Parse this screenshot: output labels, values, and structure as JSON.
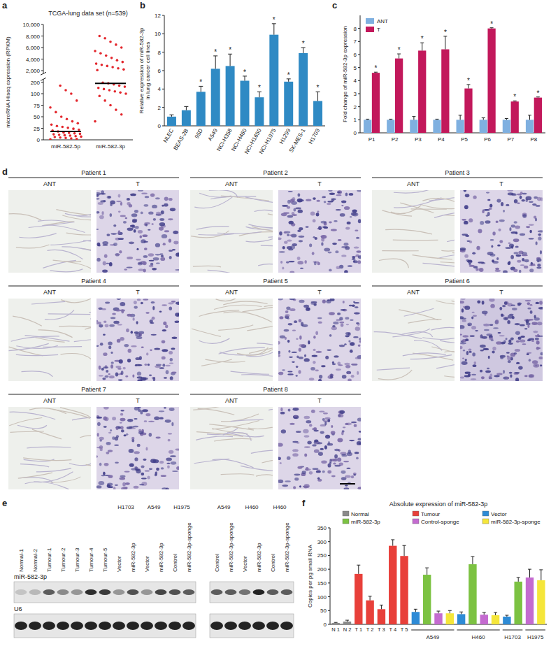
{
  "chart_data": [
    {
      "label": "a",
      "type": "strip",
      "title": "TCGA-lung data set (n=539)",
      "y_label": "microRNA Hiseq expression (RPKM)",
      "categories": [
        "miR-582-5p",
        "miR-582-3p"
      ],
      "values": [
        [
          1,
          2,
          3,
          4,
          5,
          6,
          7,
          8,
          9,
          10,
          11,
          12,
          13,
          14,
          15,
          16,
          18,
          20,
          22,
          24,
          26,
          28,
          30,
          33,
          36,
          40,
          45,
          50,
          60,
          70,
          85,
          100,
          130,
          170
        ],
        [
          40,
          55,
          65,
          75,
          85,
          95,
          100,
          110,
          120,
          130,
          140,
          150,
          160,
          170,
          180,
          190,
          195,
          2100,
          2200,
          2400,
          2600,
          2800,
          3000,
          3200,
          3500,
          3800,
          4200,
          4600,
          5000,
          5400,
          6000,
          6500,
          7000,
          7600,
          8000
        ]
      ],
      "means": [
        18,
        190
      ],
      "color": "#e3262c",
      "ylim": [
        0,
        10000
      ],
      "axis_break": [
        200,
        2000
      ],
      "yticks": [
        0,
        25,
        50,
        75,
        100,
        200,
        {
          "value": 2000,
          "label": "2,000"
        },
        {
          "value": 4000,
          "label": "4,000"
        },
        {
          "value": 6000,
          "label": "6,000"
        },
        {
          "value": 8000,
          "label": "8,000"
        },
        {
          "value": 10000,
          "label": "10,000"
        }
      ]
    },
    {
      "label": "b",
      "type": "bar",
      "y_label": [
        "Relative expression of miR-582-3p",
        "in lung cancer cell lines"
      ],
      "categories": [
        "NLEC",
        "BEAS-2B",
        "95D",
        "A549",
        "NCI-H358",
        "NCI-H460",
        "NCI-H1650",
        "NCI-H1975",
        "H1299",
        "SK-MES-1",
        "H1703"
      ],
      "values": [
        1,
        1.7,
        3.7,
        6.2,
        6.5,
        4.9,
        3.1,
        9.9,
        4.8,
        7.9,
        2.7
      ],
      "errors": [
        0.2,
        0.4,
        0.6,
        1.4,
        1.3,
        0.5,
        0.6,
        1.2,
        0.3,
        0.6,
        1.0
      ],
      "annotations": [
        null,
        null,
        "*",
        "*",
        "*",
        "*",
        "*",
        "*",
        "*",
        "*",
        "*"
      ],
      "color": "#2f8ac4",
      "ylim": [
        0,
        12
      ],
      "yticks": [
        0,
        2,
        4,
        6,
        8,
        10,
        12
      ]
    },
    {
      "label": "c",
      "type": "bar",
      "y_label": "Fold change of miR-582-3p expression",
      "categories": [
        "P1",
        "P2",
        "P3",
        "P4",
        "P5",
        "P6",
        "P7",
        "P8"
      ],
      "series": [
        {
          "name": "ANT",
          "color": "#7fb0e0",
          "values": [
            1,
            1,
            1,
            1,
            1,
            1,
            1,
            1
          ],
          "errors": [
            0.05,
            0.05,
            0.25,
            0.05,
            0.35,
            0.15,
            0.1,
            0.35
          ]
        },
        {
          "name": "T",
          "color": "#c2185b",
          "values": [
            4.6,
            5.7,
            6.3,
            6.4,
            3.4,
            8.0,
            2.4,
            2.7
          ],
          "errors": [
            0.05,
            0.35,
            0.6,
            1.0,
            0.3,
            0.05,
            0.05,
            0.05
          ],
          "annotations": [
            "*",
            "*",
            "*",
            "*",
            "*",
            "*",
            "*",
            "*"
          ]
        }
      ],
      "legend": "top-left",
      "ylim": [
        0,
        9
      ],
      "yticks": [
        0,
        1,
        2,
        3,
        4,
        5,
        6,
        7,
        8
      ]
    },
    {
      "label": "f",
      "type": "bar",
      "title": "Absolute expression of miR-582-3p",
      "y_label": "Copies per pg small RNA",
      "categories": [
        "N 1",
        "N 2",
        "T 1",
        "T 2",
        "T 3",
        "T 4",
        "T 5",
        null,
        null,
        null,
        null,
        null,
        null,
        null,
        null,
        null,
        null,
        null,
        null
      ],
      "series": [
        {
          "name": "Normal",
          "color": "#8a8a8a",
          "values": [
            5,
            10,
            null,
            null,
            null,
            null,
            null,
            null,
            null,
            null,
            null,
            null,
            null,
            null,
            null,
            null,
            null,
            null,
            null
          ],
          "errors": [
            2,
            5,
            null,
            null,
            null,
            null,
            null,
            null,
            null,
            null,
            null,
            null,
            null,
            null,
            null,
            null,
            null,
            null,
            null
          ]
        },
        {
          "name": "Tumour",
          "color": "#e8403a",
          "values": [
            null,
            null,
            183,
            87,
            55,
            285,
            248,
            null,
            null,
            null,
            null,
            null,
            null,
            null,
            null,
            null,
            null,
            null,
            null
          ],
          "errors": [
            null,
            null,
            32,
            15,
            15,
            22,
            38,
            null,
            null,
            null,
            null,
            null,
            null,
            null,
            null,
            null,
            null,
            null,
            null
          ]
        },
        {
          "name": "Vector",
          "color": "#2e8bd6",
          "values": [
            null,
            null,
            null,
            null,
            null,
            null,
            null,
            45,
            null,
            null,
            null,
            37,
            null,
            null,
            null,
            28,
            null,
            null,
            null
          ],
          "errors": [
            null,
            null,
            null,
            null,
            null,
            null,
            null,
            10,
            null,
            null,
            null,
            8,
            null,
            null,
            null,
            5,
            null,
            null,
            null
          ]
        },
        {
          "name": "miR-582-3p",
          "color": "#7cc242",
          "values": [
            null,
            null,
            null,
            null,
            null,
            null,
            null,
            null,
            180,
            null,
            null,
            null,
            218,
            null,
            null,
            null,
            155,
            null,
            null
          ],
          "errors": [
            null,
            null,
            null,
            null,
            null,
            null,
            null,
            null,
            25,
            null,
            null,
            null,
            28,
            null,
            null,
            null,
            15,
            null,
            null
          ]
        },
        {
          "name": "Control-sponge",
          "color": "#c46bd0",
          "values": [
            null,
            null,
            null,
            null,
            null,
            null,
            null,
            null,
            null,
            40,
            null,
            null,
            null,
            35,
            null,
            null,
            null,
            170,
            null
          ],
          "errors": [
            null,
            null,
            null,
            null,
            null,
            null,
            null,
            null,
            null,
            8,
            null,
            null,
            null,
            8,
            null,
            null,
            null,
            30,
            null
          ]
        },
        {
          "name": "miR-582-3p-sponge",
          "color": "#f5e63a",
          "values": [
            null,
            null,
            null,
            null,
            null,
            null,
            null,
            null,
            null,
            null,
            40,
            null,
            null,
            null,
            33,
            null,
            null,
            null,
            160
          ],
          "errors": [
            null,
            null,
            null,
            null,
            null,
            null,
            null,
            null,
            null,
            null,
            10,
            null,
            null,
            null,
            10,
            null,
            null,
            null,
            38
          ]
        }
      ],
      "groups": [
        {
          "label": "A549",
          "from": 7,
          "to": 10
        },
        {
          "label": "H460",
          "from": 11,
          "to": 14
        },
        {
          "label": "H1703",
          "from": 15,
          "to": 16
        },
        {
          "label": "H1975",
          "from": 17,
          "to": 18
        }
      ],
      "legend": "top",
      "ylim": [
        0,
        350
      ],
      "yticks": [
        0,
        50,
        100,
        150,
        200,
        250,
        300,
        350
      ]
    }
  ],
  "panel_d": {
    "label": "d",
    "patients": [
      {
        "title": "Patient 1",
        "left": "ANT",
        "right": "T"
      },
      {
        "title": "Patient 2",
        "left": "ANT",
        "right": "T"
      },
      {
        "title": "Patient 3",
        "left": "ANT",
        "right": "T"
      },
      {
        "title": "Patient 4",
        "left": "ANT",
        "right": "T"
      },
      {
        "title": "Patient 5",
        "left": "ANT",
        "right": "T"
      },
      {
        "title": "Patient 6",
        "left": "ANT",
        "right": "T"
      },
      {
        "title": "Patient 7",
        "left": "ANT",
        "right": "T"
      },
      {
        "title": "Patient 8",
        "left": "ANT",
        "right": "T"
      }
    ]
  },
  "panel_e": {
    "label": "e",
    "row_labels": [
      "miR-582-3p",
      "U6"
    ],
    "blots": [
      {
        "groups": [
          {
            "lanes": [
              "Normal-1",
              "Normal-2",
              "Tumour-1",
              "Tumour-2",
              "Tumour-3",
              "Tumour-4",
              "Tumour-5"
            ]
          },
          {
            "label": "H1703",
            "lanes": [
              "Vector",
              "miR-582-3p"
            ]
          },
          {
            "label": "A549",
            "lanes": [
              "Vector",
              "miR-582-3p"
            ]
          },
          {
            "label": "H1975",
            "lanes": [
              "Control",
              "miR-582-3p-sponge"
            ]
          }
        ],
        "mir_band": [
          0.15,
          0.2,
          0.6,
          0.4,
          0.35,
          0.8,
          0.75,
          0.35,
          0.65,
          0.35,
          0.7,
          0.65,
          0.6
        ],
        "u6_band": [
          0.85,
          0.85,
          0.85,
          0.85,
          0.85,
          0.85,
          0.85,
          0.85,
          0.85,
          0.85,
          0.85,
          0.85,
          0.85
        ]
      },
      {
        "groups": [
          {
            "label": "A549",
            "lanes": [
              "Control",
              "miR-582-3p-sponge"
            ]
          },
          {
            "label": "H460",
            "lanes": [
              "Vector",
              "miR-582-3p"
            ]
          },
          {
            "label": "H460",
            "lanes": [
              "Control",
              "miR-582-3p-sponge"
            ]
          }
        ],
        "mir_band": [
          0.6,
          0.6,
          0.5,
          0.85,
          0.6,
          0.6
        ],
        "u6_band": [
          0.85,
          0.85,
          0.85,
          0.85,
          0.85,
          0.85
        ]
      }
    ]
  }
}
